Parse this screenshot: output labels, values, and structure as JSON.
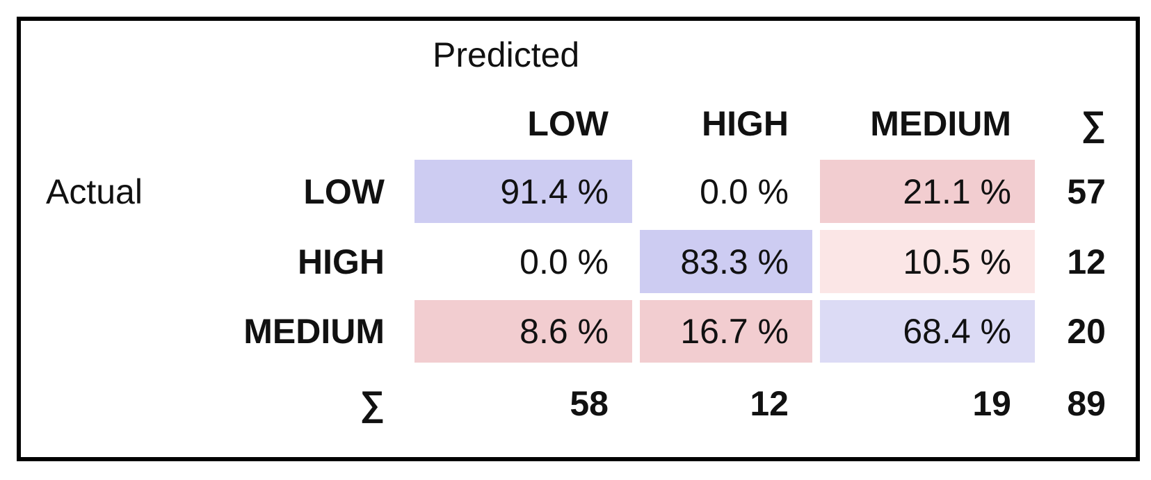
{
  "predicted_label": "Predicted",
  "actual_label": "Actual",
  "sum_symbol": "∑",
  "columns": [
    "LOW",
    "HIGH",
    "MEDIUM"
  ],
  "rows": [
    {
      "label": "LOW",
      "cells": [
        "91.4 %",
        "0.0 %",
        "21.1 %"
      ],
      "total": 57
    },
    {
      "label": "HIGH",
      "cells": [
        "0.0 %",
        "83.3 %",
        "10.5 %"
      ],
      "total": 12
    },
    {
      "label": "MEDIUM",
      "cells": [
        "8.6 %",
        "16.7 %",
        "68.4 %"
      ],
      "total": 20
    }
  ],
  "cell_colors": [
    [
      "#cdccf2",
      "#ffffff",
      "#f2cdd0"
    ],
    [
      "#ffffff",
      "#cdccf2",
      "#fbe6e6"
    ],
    [
      "#f2cdd0",
      "#f2cdd0",
      "#dcdbf5"
    ]
  ],
  "column_totals": [
    58,
    12,
    19
  ],
  "grand_total": 89
}
